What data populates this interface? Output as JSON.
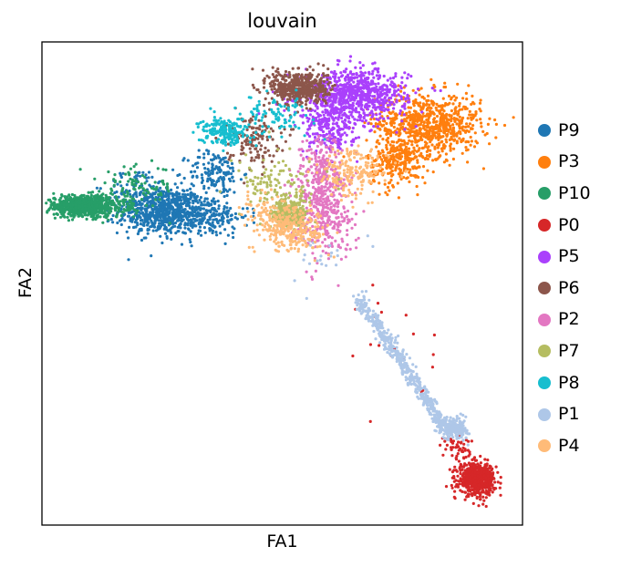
{
  "chart_data": {
    "type": "scatter",
    "title": "louvain",
    "xlabel": "FA1",
    "ylabel": "FA2",
    "xlim": [
      0,
      100
    ],
    "ylim": [
      0,
      100
    ],
    "grid": false,
    "ticks_shown": false,
    "legend_position": "right",
    "series": [
      {
        "name": "P9",
        "color": "#1f77b4",
        "clusters": [
          {
            "cx": 25,
            "cy": 65,
            "sx": 4.5,
            "sy": 2.4,
            "n": 700
          },
          {
            "cx": 34,
            "cy": 64,
            "sx": 4.5,
            "sy": 2.2,
            "n": 220
          },
          {
            "cx": 36,
            "cy": 73,
            "sx": 2.8,
            "sy": 2.2,
            "n": 140
          },
          {
            "cx": 20,
            "cy": 70,
            "sx": 3.2,
            "sy": 1.8,
            "n": 60
          }
        ]
      },
      {
        "name": "P3",
        "color": "#ff7f0e",
        "clusters": [
          {
            "cx": 80.5,
            "cy": 83,
            "sx": 5.5,
            "sy": 3.2,
            "n": 750
          },
          {
            "cx": 74,
            "cy": 75,
            "sx": 3.2,
            "sy": 2.5,
            "n": 250
          }
        ]
      },
      {
        "name": "P10",
        "color": "#279e68",
        "clusters": [
          {
            "cx": 9,
            "cy": 66,
            "sx": 4.2,
            "sy": 1.1,
            "n": 750
          },
          {
            "cx": 20,
            "cy": 70,
            "sx": 4,
            "sy": 2.2,
            "n": 90
          }
        ]
      },
      {
        "name": "P0",
        "color": "#d62728",
        "clusters": [
          {
            "cx": 90.5,
            "cy": 9.5,
            "sx": 1.9,
            "sy": 1.6,
            "n": 600
          },
          {
            "cx": 86.5,
            "cy": 16,
            "sx": 1.5,
            "sy": 2.2,
            "n": 60
          },
          {
            "cx": 74,
            "cy": 38,
            "sx": 4,
            "sy": 6,
            "n": 20
          }
        ]
      },
      {
        "name": "P5",
        "color": "#aa40fc",
        "clusters": [
          {
            "cx": 65,
            "cy": 89,
            "sx": 5.5,
            "sy": 2.6,
            "n": 800
          },
          {
            "cx": 60,
            "cy": 82,
            "sx": 2.8,
            "sy": 2.5,
            "n": 200
          }
        ]
      },
      {
        "name": "P6",
        "color": "#8c564b",
        "clusters": [
          {
            "cx": 53.5,
            "cy": 90.5,
            "sx": 3,
            "sy": 1.8,
            "n": 500
          },
          {
            "cx": 44,
            "cy": 80,
            "sx": 2.8,
            "sy": 2.6,
            "n": 130
          }
        ]
      },
      {
        "name": "P2",
        "color": "#e377c2",
        "clusters": [
          {
            "cx": 58.5,
            "cy": 65,
            "sx": 3.2,
            "sy": 4.5,
            "n": 380
          },
          {
            "cx": 58,
            "cy": 74,
            "sx": 2.2,
            "sy": 3.2,
            "n": 160
          }
        ]
      },
      {
        "name": "P7",
        "color": "#b5bd61",
        "clusters": [
          {
            "cx": 51.5,
            "cy": 64.5,
            "sx": 1.8,
            "sy": 1.5,
            "n": 300
          },
          {
            "cx": 49,
            "cy": 70,
            "sx": 4,
            "sy": 3,
            "n": 120
          }
        ]
      },
      {
        "name": "P8",
        "color": "#17becf",
        "clusters": [
          {
            "cx": 38,
            "cy": 81.5,
            "sx": 2.5,
            "sy": 1.4,
            "n": 200
          },
          {
            "cx": 48,
            "cy": 85,
            "sx": 4,
            "sy": 1.8,
            "n": 90
          }
        ]
      },
      {
        "name": "P1",
        "color": "#aec7e8",
        "clusters": [
          {
            "cx": 76,
            "cy": 34,
            "sx": 0,
            "sy": 0,
            "n": 500,
            "line": [
              [
                66,
                47
              ],
              [
                84,
                20
              ]
            ],
            "spread": 0.7
          },
          {
            "cx": 86,
            "cy": 20,
            "sx": 1.4,
            "sy": 1.1,
            "n": 200
          },
          {
            "cx": 58,
            "cy": 56,
            "sx": 5,
            "sy": 4,
            "n": 25
          }
        ]
      },
      {
        "name": "P4",
        "color": "#ffbb78",
        "clusters": [
          {
            "cx": 53,
            "cy": 61,
            "sx": 3.2,
            "sy": 2.2,
            "n": 220
          },
          {
            "cx": 65,
            "cy": 73,
            "sx": 3.5,
            "sy": 2.5,
            "n": 180
          },
          {
            "cx": 47,
            "cy": 64,
            "sx": 3,
            "sy": 3,
            "n": 100
          }
        ]
      }
    ]
  }
}
